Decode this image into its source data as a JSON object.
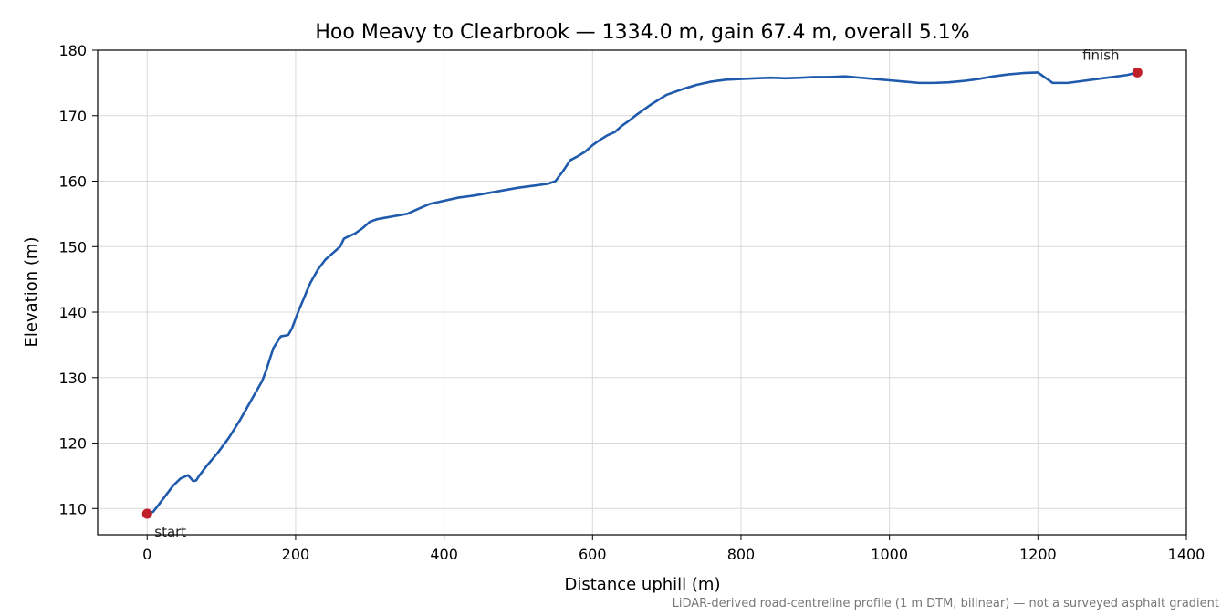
{
  "chart_data": {
    "type": "line",
    "title": "Hoo Meavy to Clearbrook — 1334.0 m, gain 67.4 m, overall 5.1%",
    "xlabel": "Distance uphill (m)",
    "ylabel": "Elevation (m)",
    "xlim": [
      -66.7,
      1400
    ],
    "ylim": [
      106,
      180
    ],
    "xticks": [
      0,
      200,
      400,
      600,
      800,
      1000,
      1200,
      1400
    ],
    "yticks": [
      110,
      120,
      130,
      140,
      150,
      160,
      170,
      180
    ],
    "grid": true,
    "footnote": "LiDAR-derived road-centreline profile (1 m DTM, bilinear) — not a surveyed asphalt gradient",
    "line_color": "#1f5aad",
    "marker_color": "#c0202a",
    "series": [
      {
        "x": [
          0,
          8,
          15,
          25,
          35,
          45,
          55,
          62,
          66,
          70,
          80,
          95,
          110,
          125,
          140,
          150,
          155,
          160,
          170,
          180,
          190,
          195,
          200,
          205,
          210,
          215,
          220,
          230,
          240,
          250,
          260,
          265,
          270,
          280,
          290,
          300,
          310,
          315,
          320,
          330,
          340,
          350,
          360,
          370,
          380,
          400,
          420,
          440,
          460,
          480,
          500,
          520,
          540,
          550,
          560,
          570,
          580,
          590,
          600,
          610,
          620,
          630,
          640,
          650,
          660,
          670,
          680,
          690,
          700,
          720,
          740,
          760,
          780,
          800,
          820,
          840,
          860,
          880,
          900,
          920,
          940,
          960,
          980,
          1000,
          1020,
          1040,
          1060,
          1080,
          1100,
          1120,
          1140,
          1160,
          1180,
          1200,
          1220,
          1240,
          1260,
          1280,
          1300,
          1320,
          1334
        ],
        "y": [
          109.2,
          109.5,
          110.5,
          112.0,
          113.5,
          114.6,
          115.1,
          114.2,
          114.3,
          115.0,
          116.5,
          118.5,
          120.8,
          123.5,
          126.5,
          128.5,
          129.5,
          131.0,
          134.5,
          136.3,
          136.5,
          137.5,
          139.0,
          140.5,
          141.8,
          143.2,
          144.5,
          146.5,
          148.0,
          149.0,
          150.0,
          151.2,
          151.5,
          152.0,
          152.8,
          153.8,
          154.2,
          154.3,
          154.4,
          154.6,
          154.8,
          155.0,
          155.5,
          156.0,
          156.5,
          157.0,
          157.5,
          157.8,
          158.2,
          158.6,
          159.0,
          159.3,
          159.6,
          160.0,
          161.5,
          163.2,
          163.8,
          164.5,
          165.5,
          166.3,
          167.0,
          167.5,
          168.5,
          169.3,
          170.2,
          171.0,
          171.8,
          172.5,
          173.2,
          174.0,
          174.7,
          175.2,
          175.5,
          175.6,
          175.7,
          175.8,
          175.7,
          175.8,
          175.9,
          175.9,
          176.0,
          175.8,
          175.6,
          175.4,
          175.2,
          175.0,
          175.0,
          175.1,
          175.3,
          175.6,
          176.0,
          176.3,
          176.5,
          176.6,
          175.0,
          175.0,
          175.3,
          175.6,
          175.9,
          176.2,
          176.6
        ],
        "start": {
          "x": 0,
          "y": 109.2,
          "label": "start"
        },
        "finish": {
          "x": 1334,
          "y": 176.6,
          "label": "finish"
        }
      }
    ]
  }
}
